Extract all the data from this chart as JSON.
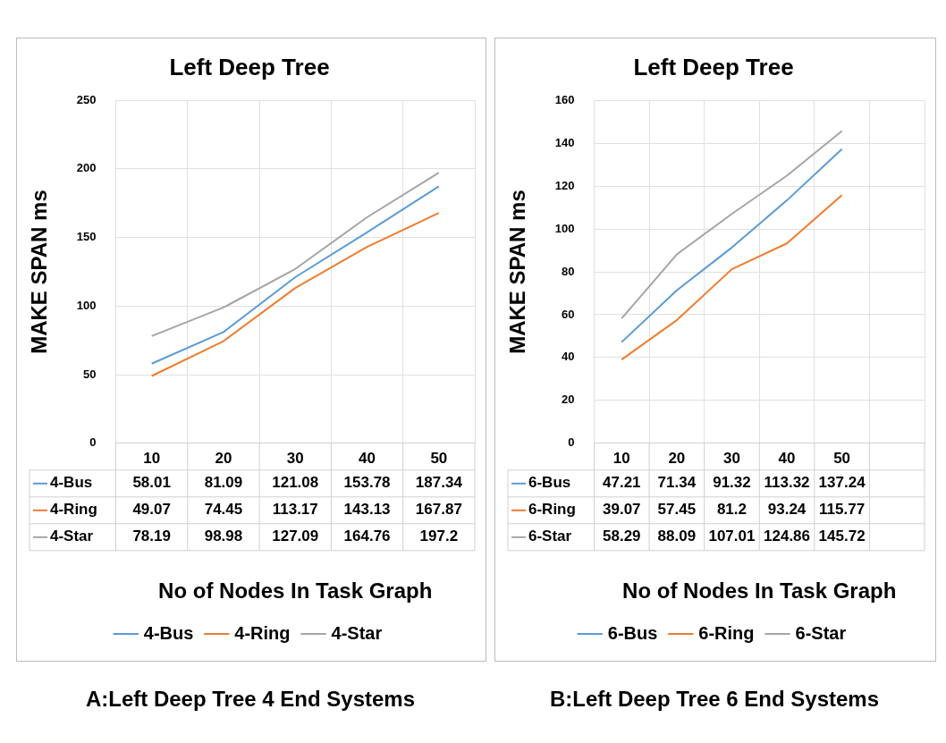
{
  "chart_data": [
    {
      "type": "line",
      "title": "Left Deep Tree",
      "xlabel": "No of Nodes In Task Graph",
      "ylabel": "MAKE SPAN ms",
      "categories": [
        "10",
        "20",
        "30",
        "40",
        "50"
      ],
      "series": [
        {
          "name": "4-Bus",
          "color": "#5b9bd5",
          "values": [
            58.01,
            81.09,
            121.08,
            153.78,
            187.34
          ]
        },
        {
          "name": "4-Ring",
          "color": "#ed7d31",
          "values": [
            49.07,
            74.45,
            113.17,
            143.13,
            167.87
          ]
        },
        {
          "name": "4-Star",
          "color": "#a5a5a5",
          "values": [
            78.19,
            98.98,
            127.09,
            164.76,
            197.2
          ]
        }
      ],
      "ylim": [
        0,
        250
      ],
      "yticks": [
        0,
        50,
        100,
        150,
        200,
        250
      ],
      "grid": true,
      "legend": "bottom",
      "marker": "none",
      "data_labels": true,
      "annotations": [
        "A:Left Deep Tree 4 End Systems"
      ]
    },
    {
      "type": "line",
      "title": "Left Deep Tree",
      "xlabel": "No of Nodes In Task Graph",
      "ylabel": "MAKE SPAN ms",
      "categories": [
        "10",
        "20",
        "30",
        "40",
        "50",
        null
      ],
      "series": [
        {
          "name": "6-Bus",
          "color": "#5b9bd5",
          "values": [
            47.21,
            71.34,
            91.32,
            113.32,
            137.24,
            null
          ]
        },
        {
          "name": "6-Ring",
          "color": "#ed7d31",
          "values": [
            39.07,
            57.45,
            81.2,
            93.24,
            115.77,
            null
          ]
        },
        {
          "name": "6-Star",
          "color": "#a5a5a5",
          "values": [
            58.29,
            88.09,
            107.01,
            124.86,
            145.72,
            null
          ]
        }
      ],
      "ylim": [
        0,
        160
      ],
      "yticks": [
        0,
        20,
        40,
        60,
        80,
        100,
        120,
        140,
        160
      ],
      "grid": true,
      "legend": "bottom",
      "marker": "none",
      "data_labels": true,
      "annotations": [
        "B:Left Deep Tree 6 End Systems"
      ]
    }
  ]
}
